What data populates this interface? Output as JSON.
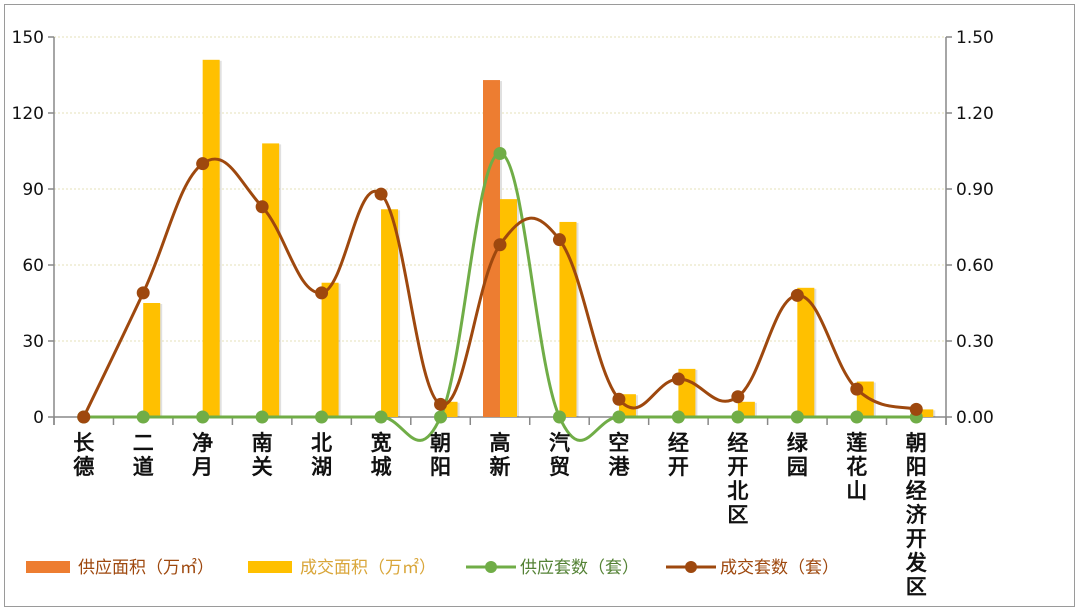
{
  "chart_data": {
    "type": "bar",
    "title": "",
    "categories": [
      "长德",
      "二道",
      "净月",
      "南关",
      "北湖",
      "宽城",
      "朝阳",
      "高新",
      "汽贸",
      "空港",
      "经开",
      "经开北区",
      "绿园",
      "莲花山",
      "朝阳经济开发区"
    ],
    "series": [
      {
        "name": "供应面积（万㎡）",
        "kind": "bar",
        "axis": "left",
        "color": "#ED7D31",
        "values": [
          0,
          0,
          0,
          0,
          0,
          0,
          0,
          133,
          0,
          0,
          0,
          0,
          0,
          0,
          0
        ]
      },
      {
        "name": "成交面积（万㎡）",
        "kind": "bar",
        "axis": "left",
        "color": "#FFC000",
        "values": [
          0,
          45,
          141,
          108,
          53,
          82,
          6,
          86,
          77,
          9,
          19,
          6,
          51,
          14,
          3
        ]
      },
      {
        "name": "供应套数（套）",
        "kind": "line",
        "axis": "right",
        "color": "#70AD47",
        "values": [
          0,
          0,
          0,
          0,
          0,
          0,
          0,
          1.04,
          0,
          0,
          0,
          0,
          0,
          0,
          0
        ]
      },
      {
        "name": "成交套数（套）",
        "kind": "line",
        "axis": "right",
        "color": "#9E480E",
        "values": [
          0,
          0.49,
          1.0,
          0.83,
          0.49,
          0.88,
          0.05,
          0.68,
          0.7,
          0.07,
          0.15,
          0.08,
          0.48,
          0.11,
          0.03
        ]
      }
    ],
    "left_axis": {
      "ticks": [
        "0",
        "30",
        "60",
        "90",
        "120",
        "150"
      ],
      "ylim": [
        0,
        150
      ]
    },
    "right_axis": {
      "ticks": [
        "0.00",
        "0.30",
        "0.60",
        "0.90",
        "1.20",
        "1.50"
      ],
      "ylim": [
        0,
        1.5
      ]
    },
    "grid": true,
    "legend_position": "bottom"
  },
  "legend": [
    {
      "label": "供应面积（万㎡）",
      "color": "#ED7D31",
      "text_color": "#9E480E",
      "kind": "bar"
    },
    {
      "label": "成交面积（万㎡）",
      "color": "#FFC000",
      "text_color": "#D9A63A",
      "kind": "bar"
    },
    {
      "label": "供应套数（套）",
      "color": "#70AD47",
      "text_color": "#548235",
      "kind": "line"
    },
    {
      "label": "成交套数（套）",
      "color": "#9E480E",
      "text_color": "#9E480E",
      "kind": "line"
    }
  ]
}
